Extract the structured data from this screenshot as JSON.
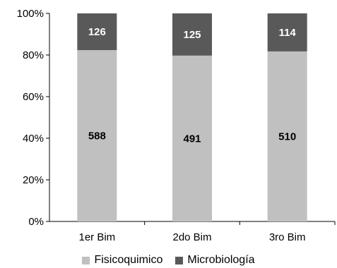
{
  "chart_data": {
    "type": "stacked-bar-100",
    "categories": [
      "1er Bim",
      "2do Bim",
      "3ro Bim"
    ],
    "series": [
      {
        "name": "Fisicoquimico",
        "values": [
          588,
          491,
          510
        ],
        "color": "#c0c0c0",
        "label_color": "#000000"
      },
      {
        "name": "Microbiología",
        "values": [
          126,
          125,
          114
        ],
        "color": "#595959",
        "label_color": "#ffffff"
      }
    ],
    "y_ticks": [
      "0%",
      "20%",
      "40%",
      "60%",
      "80%",
      "100%"
    ],
    "ylim": [
      0,
      100
    ],
    "legend_position": "bottom",
    "grid": false
  }
}
